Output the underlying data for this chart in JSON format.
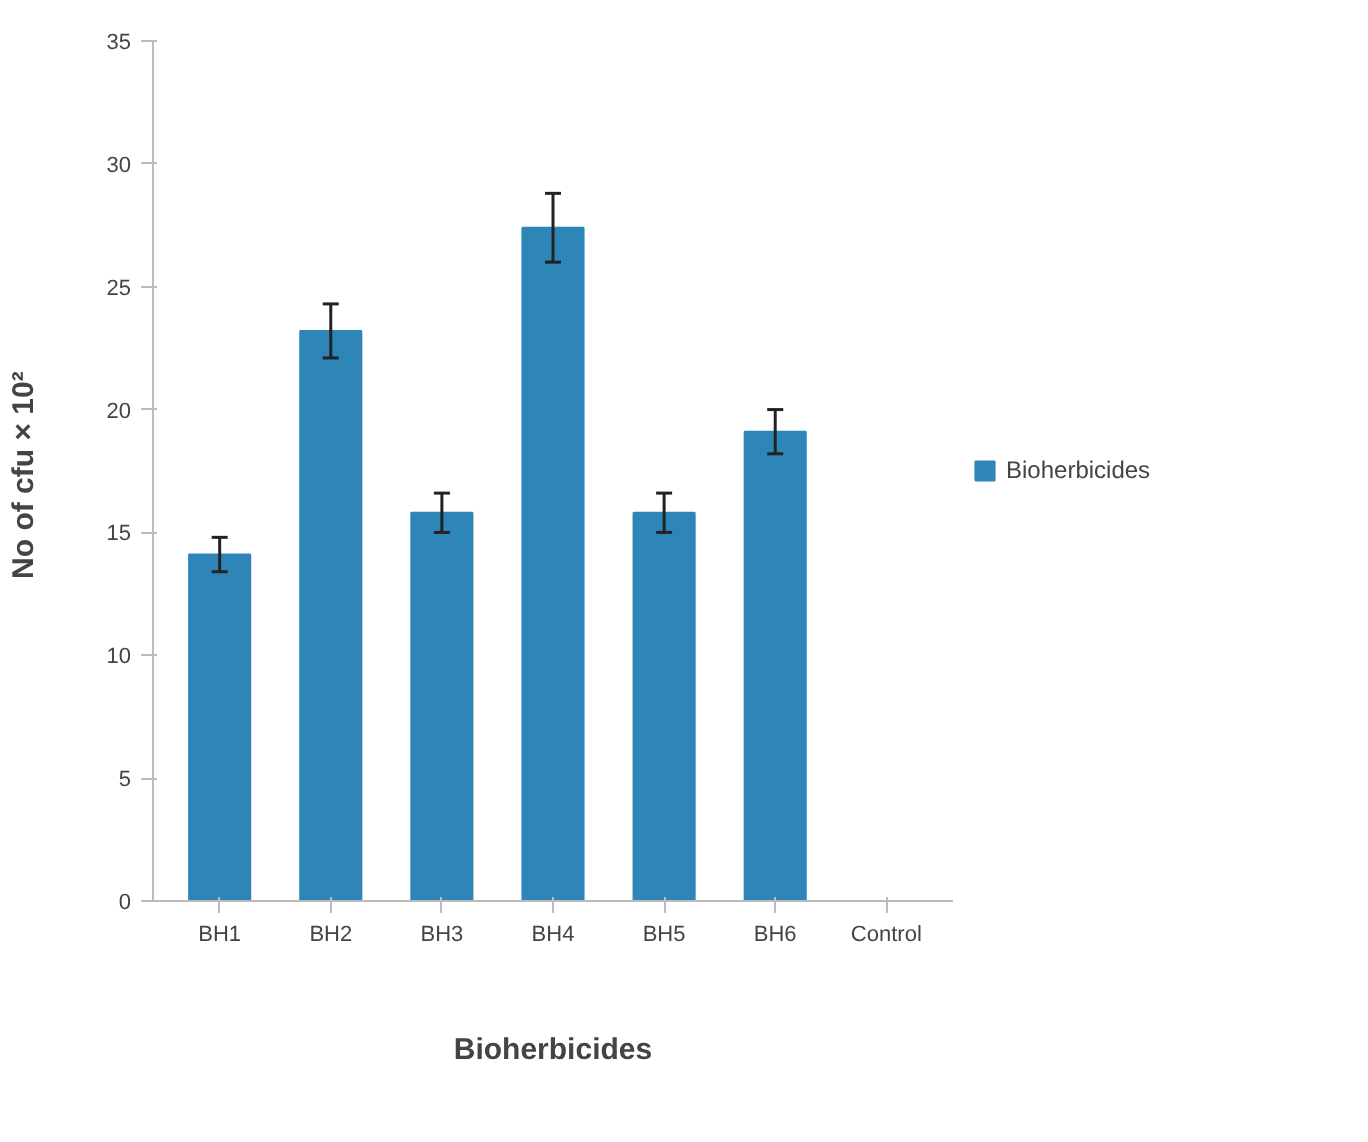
{
  "chart_data": {
    "type": "bar",
    "categories": [
      "BH1",
      "BH2",
      "BH3",
      "BH4",
      "BH5",
      "BH6",
      "Control"
    ],
    "series": [
      {
        "name": "Bioherbicides",
        "color": "#2e86b8",
        "values": [
          14.1,
          23.2,
          15.8,
          27.4,
          15.8,
          19.1,
          0
        ],
        "errors": [
          0.7,
          1.1,
          0.8,
          1.4,
          0.8,
          0.9,
          null
        ]
      }
    ],
    "xlabel": "Bioherbicides",
    "ylabel": "No of cfu  × 10²",
    "ylim": [
      0,
      35
    ],
    "yticks": [
      0,
      5,
      10,
      15,
      20,
      25,
      30,
      35
    ],
    "grid": false,
    "legend": "right"
  }
}
